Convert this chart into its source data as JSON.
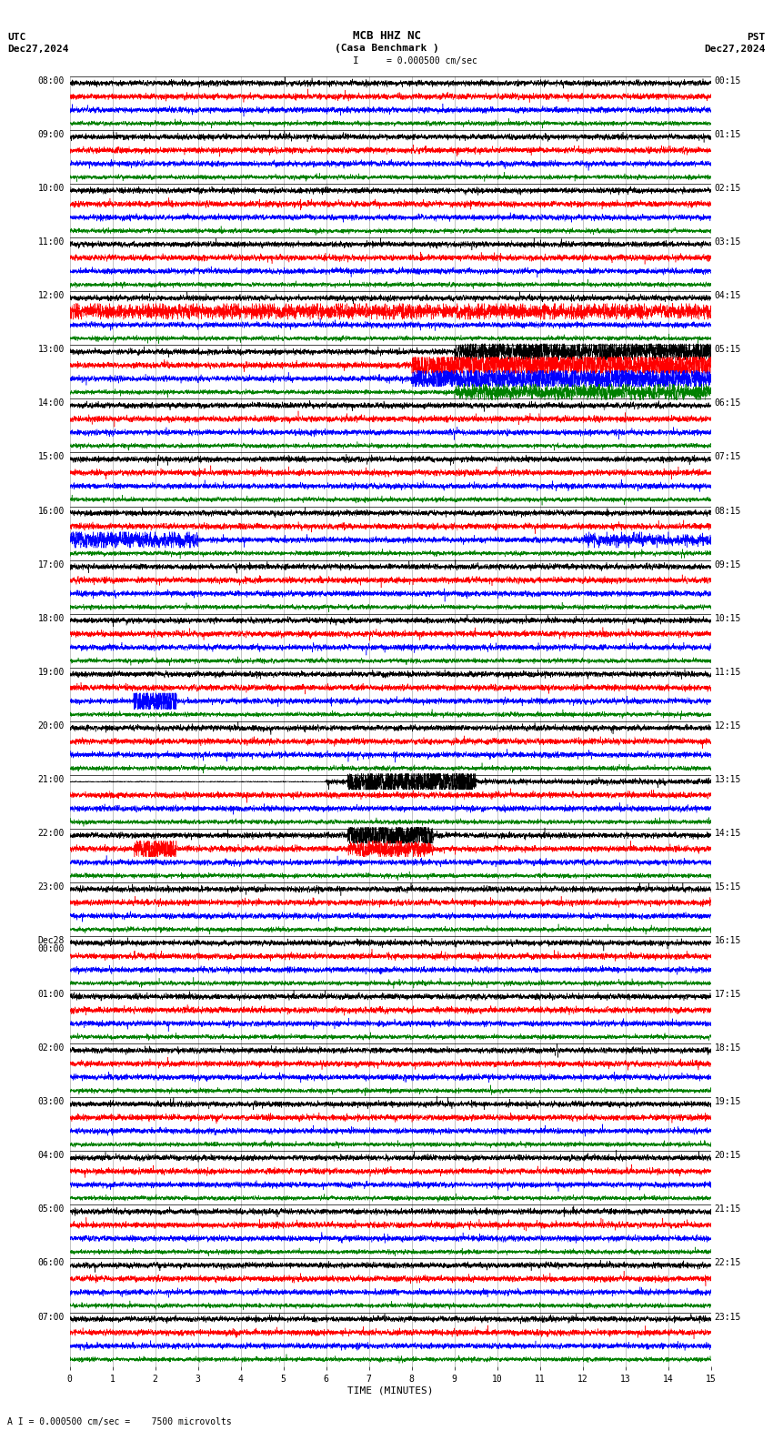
{
  "title_line1": "MCB HHZ NC",
  "title_line2": "(Casa Benchmark )",
  "scale_text": "I = 0.000500 cm/sec",
  "footer_text": "A I = 0.000500 cm/sec =    7500 microvolts",
  "utc_label": "UTC",
  "utc_date": "Dec27,2024",
  "pst_label": "PST",
  "pst_date": "Dec27,2024",
  "xlabel": "TIME (MINUTES)",
  "bg_color": "#ffffff",
  "trace_colors": [
    "black",
    "red",
    "blue",
    "green"
  ],
  "rows": [
    {
      "utc": "08:00",
      "pst": "00:15"
    },
    {
      "utc": "09:00",
      "pst": "01:15"
    },
    {
      "utc": "10:00",
      "pst": "02:15"
    },
    {
      "utc": "11:00",
      "pst": "03:15"
    },
    {
      "utc": "12:00",
      "pst": "04:15"
    },
    {
      "utc": "13:00",
      "pst": "05:15"
    },
    {
      "utc": "14:00",
      "pst": "06:15"
    },
    {
      "utc": "15:00",
      "pst": "07:15"
    },
    {
      "utc": "16:00",
      "pst": "08:15"
    },
    {
      "utc": "17:00",
      "pst": "09:15"
    },
    {
      "utc": "18:00",
      "pst": "10:15"
    },
    {
      "utc": "19:00",
      "pst": "11:15"
    },
    {
      "utc": "20:00",
      "pst": "12:15"
    },
    {
      "utc": "21:00",
      "pst": "13:15"
    },
    {
      "utc": "22:00",
      "pst": "14:15"
    },
    {
      "utc": "23:00",
      "pst": "15:15"
    },
    {
      "utc": "Dec28\n00:00",
      "pst": "16:15"
    },
    {
      "utc": "01:00",
      "pst": "17:15"
    },
    {
      "utc": "02:00",
      "pst": "18:15"
    },
    {
      "utc": "03:00",
      "pst": "19:15"
    },
    {
      "utc": "04:00",
      "pst": "20:15"
    },
    {
      "utc": "05:00",
      "pst": "21:15"
    },
    {
      "utc": "06:00",
      "pst": "22:15"
    },
    {
      "utc": "07:00",
      "pst": "23:15"
    }
  ],
  "n_rows": 24,
  "traces_per_row": 4,
  "duration_minutes": 15,
  "fig_width": 8.5,
  "fig_height": 15.84,
  "dpi": 100,
  "label_fontsize": 7,
  "title_fontsize": 9,
  "header_fontsize": 8,
  "grid_color": "#999999",
  "separator_color": "#000000"
}
